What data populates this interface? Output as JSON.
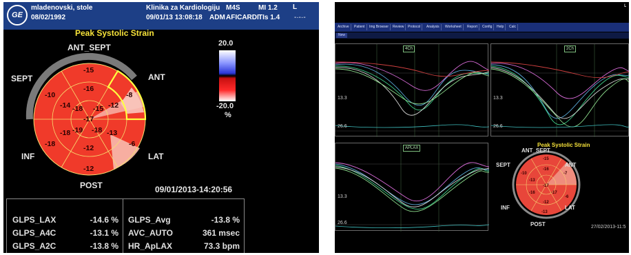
{
  "left": {
    "header": {
      "logo": "GE",
      "patient_name": "mladenovski, stole",
      "patient_dob": "08/02/1992",
      "institution": "Klinika za Kardiologiju",
      "exam_datetime": "09/01/13 13:08:18",
      "operator": "ADM",
      "app": "AFICARDI",
      "probe": "M4S",
      "mi": "MI 1.2",
      "tis": "TIs 1.4",
      "corner_mark": "L"
    },
    "title": "Peak Systolic Strain",
    "segment_labels": {
      "ant_sept": "ANT_SEPT",
      "sept": "SEPT",
      "ant": "ANT",
      "inf": "INF",
      "lat": "LAT",
      "post": "POST"
    },
    "scale": {
      "max": "20.0",
      "min": "-20.0",
      "unit": "%"
    },
    "bullseye_values": {
      "basal_antsept": "-15",
      "basal_ant": "-8",
      "basal_sept": "-10",
      "basal_lat": "-6",
      "basal_inf": "-18",
      "basal_post": "-12",
      "mid_antsept": "-16",
      "mid_ant": "-12",
      "mid_sept": "-14",
      "mid_lat": "-13",
      "mid_inf": "-18",
      "mid_post": "-12",
      "ap_ant": "-15",
      "ap_sept": "-18",
      "ap_lat": "-18",
      "ap_inf": "-19",
      "apex": "-17"
    },
    "timestamp": "09/01/2013-14:20:56",
    "stats": [
      {
        "label": "GLPS_LAX",
        "value": "-14.6 %"
      },
      {
        "label": "GLPS_A4C",
        "value": "-13.1 %"
      },
      {
        "label": "GLPS_A2C",
        "value": "-13.8 %"
      },
      {
        "label": "GLPS_Avg",
        "value": "-13.8 %"
      },
      {
        "label": "AVC_AUTO",
        "value": "361 msec"
      },
      {
        "label": "HR_ApLAX",
        "value": "73.3 bpm"
      }
    ]
  },
  "right": {
    "menu_tabs": [
      "Archive",
      "Patient",
      "Img Browser",
      "Review",
      "Protocol",
      "Analysis",
      "Worksheet",
      "Report",
      "Config",
      "Help",
      "Calc"
    ],
    "sub_button": "New",
    "plots": {
      "top_left_tag": "4Ch",
      "top_right_tag": "2Ch",
      "bottom_tag": "APLAX",
      "axis_top": "13.3",
      "axis_bottom": "26.6"
    },
    "title": "Peak Systolic Strain",
    "segment_labels": {
      "ant_sept": "ANT_SEPT",
      "sept": "SEPT",
      "ant": "ANT",
      "inf": "INF",
      "lat": "LAT",
      "post": "POST"
    },
    "bullseye_values": [
      "-15",
      "-16",
      "-10",
      "-13",
      "-17",
      "-7",
      "-16",
      "-17",
      "-6",
      "-12",
      "-13"
    ],
    "timestamp": "27/02/2013-11:5"
  },
  "colors": {
    "header_blue": "#1d3f86",
    "title_yellow": "#f7e33a",
    "strain_red": "#f03a2a"
  }
}
